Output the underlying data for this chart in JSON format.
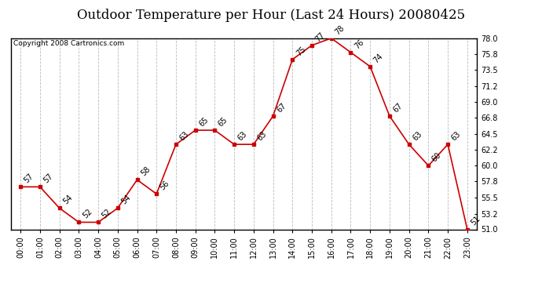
{
  "title": "Outdoor Temperature per Hour (Last 24 Hours) 20080425",
  "copyright": "Copyright 2008 Cartronics.com",
  "hours": [
    "00:00",
    "01:00",
    "02:00",
    "03:00",
    "04:00",
    "05:00",
    "06:00",
    "07:00",
    "08:00",
    "09:00",
    "10:00",
    "11:00",
    "12:00",
    "13:00",
    "14:00",
    "15:00",
    "16:00",
    "17:00",
    "18:00",
    "19:00",
    "20:00",
    "21:00",
    "22:00",
    "23:00"
  ],
  "temps": [
    57,
    57,
    54,
    52,
    52,
    54,
    58,
    56,
    63,
    65,
    65,
    63,
    63,
    67,
    75,
    77,
    78,
    76,
    74,
    67,
    63,
    60,
    63,
    51
  ],
  "ylim": [
    51.0,
    78.0
  ],
  "yticks": [
    51.0,
    53.2,
    55.5,
    57.8,
    60.0,
    62.2,
    64.5,
    66.8,
    69.0,
    71.2,
    73.5,
    75.8,
    78.0
  ],
  "line_color": "#cc0000",
  "marker_color": "#cc0000",
  "bg_color": "#ffffff",
  "grid_color": "#bbbbbb",
  "title_fontsize": 12,
  "label_fontsize": 7,
  "annot_fontsize": 7,
  "copyright_fontsize": 6.5
}
